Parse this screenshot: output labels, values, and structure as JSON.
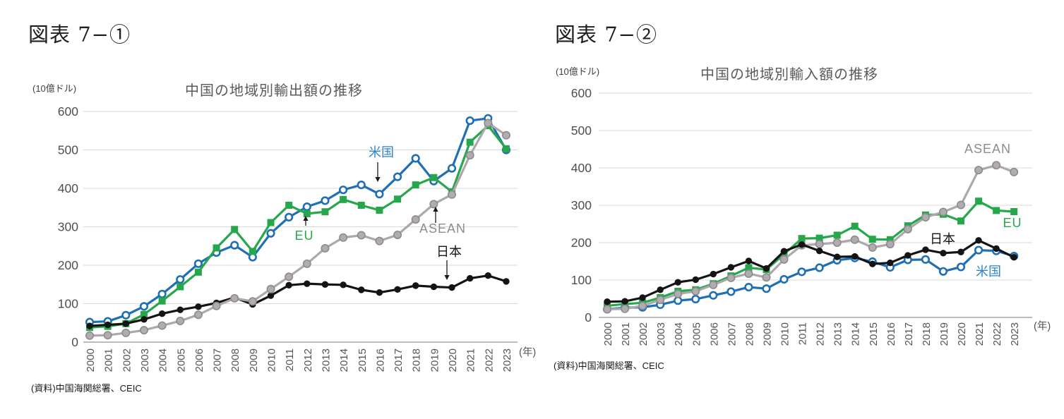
{
  "page": {
    "background": "#ffffff"
  },
  "figures": [
    {
      "heading": "図表 7−①",
      "unit": "(10億ドル)",
      "title": "中国の地域別輸出額の推移",
      "source": "(資料)中国海関総署、CEIC",
      "year_suffix": "(年)"
    },
    {
      "heading": "図表 7−②",
      "unit": "(10億ドル)",
      "title": "中国の地域別輸入額の推移",
      "source": "(資料)中国海関総署、CEIC",
      "year_suffix": "(年)"
    }
  ],
  "chart_data": [
    {
      "type": "line",
      "title": "中国の地域別輸出額の推移",
      "unit": "(10億ドル)",
      "xlabel": "(年)",
      "ylabel": "",
      "ylim": [
        0,
        600
      ],
      "y_ticks": [
        0,
        100,
        200,
        300,
        400,
        500,
        600
      ],
      "grid": true,
      "x": [
        2000,
        2001,
        2002,
        2003,
        2004,
        2005,
        2006,
        2007,
        2008,
        2009,
        2010,
        2011,
        2012,
        2013,
        2014,
        2015,
        2016,
        2017,
        2018,
        2019,
        2020,
        2021,
        2022,
        2023
      ],
      "series": [
        {
          "id": "us",
          "name": "米国",
          "color": "#1F6FB5",
          "marker": "circle-open",
          "values": [
            52,
            54,
            70,
            93,
            125,
            163,
            204,
            233,
            252,
            221,
            283,
            325,
            352,
            368,
            396,
            409,
            385,
            430,
            478,
            419,
            452,
            576,
            582,
            500
          ]
        },
        {
          "id": "eu",
          "name": "EU",
          "color": "#27A74B",
          "marker": "square",
          "values": [
            38,
            41,
            48,
            72,
            107,
            144,
            182,
            245,
            293,
            236,
            311,
            356,
            334,
            339,
            371,
            356,
            343,
            372,
            409,
            428,
            391,
            520,
            563,
            503
          ]
        },
        {
          "id": "japan",
          "name": "日本",
          "color": "#141414",
          "marker": "circle",
          "values": [
            42,
            45,
            48,
            59,
            74,
            84,
            92,
            102,
            116,
            98,
            121,
            148,
            152,
            150,
            149,
            136,
            129,
            137,
            147,
            144,
            142,
            166,
            173,
            158
          ]
        },
        {
          "id": "asean",
          "name": "ASEAN",
          "color": "#ACA8AB",
          "marker": "circle-gray",
          "marker_fill": "#B1ACB0",
          "marker_stroke": "#8E8A8D",
          "values": [
            17,
            18,
            24,
            31,
            43,
            55,
            71,
            94,
            114,
            106,
            138,
            170,
            204,
            244,
            272,
            278,
            263,
            279,
            319,
            359,
            384,
            486,
            570,
            538
          ]
        }
      ],
      "annotations": [
        {
          "series": "us",
          "text": "米国",
          "color": "#2D87C8",
          "x": 540,
          "y": 222,
          "arrow": {
            "x": 535,
            "y1": 230,
            "y2": 258
          }
        },
        {
          "series": "eu",
          "text": "EU",
          "color": "#27A74B",
          "x": 431,
          "y": 340,
          "arrow": {
            "x": 433,
            "y1": 320,
            "y2": 306
          }
        },
        {
          "series": "asean",
          "text": "ASEAN",
          "color": "#8C8C8C",
          "x": 627,
          "y": 330,
          "arrow": {
            "x": 617,
            "y1": 316,
            "y2": 293
          }
        },
        {
          "series": "japan",
          "text": "日本",
          "color": "#141414",
          "x": 636,
          "y": 363,
          "arrow": {
            "x": 633,
            "y1": 369,
            "y2": 397
          }
        }
      ]
    },
    {
      "type": "line",
      "title": "中国の地域別輸入額の推移",
      "unit": "(10億ドル)",
      "xlabel": "(年)",
      "ylabel": "",
      "ylim": [
        0,
        600
      ],
      "y_ticks": [
        0,
        100,
        200,
        300,
        400,
        500,
        600
      ],
      "grid": true,
      "x": [
        2000,
        2001,
        2002,
        2003,
        2004,
        2005,
        2006,
        2007,
        2008,
        2009,
        2010,
        2011,
        2012,
        2013,
        2014,
        2015,
        2016,
        2017,
        2018,
        2019,
        2020,
        2021,
        2022,
        2023
      ],
      "series": [
        {
          "id": "us",
          "name": "米国",
          "color": "#1F6FB5",
          "marker": "circle-open",
          "values": [
            22,
            26,
            27,
            34,
            45,
            49,
            59,
            69,
            81,
            77,
            102,
            122,
            133,
            153,
            159,
            149,
            134,
            154,
            155,
            123,
            135,
            180,
            178,
            164
          ]
        },
        {
          "id": "eu",
          "name": "EU",
          "color": "#27A74B",
          "marker": "square",
          "values": [
            31,
            36,
            39,
            53,
            70,
            74,
            90,
            111,
            133,
            128,
            169,
            211,
            212,
            220,
            244,
            209,
            208,
            245,
            274,
            276,
            258,
            311,
            286,
            283
          ]
        },
        {
          "id": "asean",
          "name": "ASEAN",
          "color": "#ACA8AB",
          "marker": "circle-gray",
          "marker_fill": "#B1ACB0",
          "marker_stroke": "#8E8A8D",
          "values": [
            22,
            23,
            31,
            47,
            63,
            70,
            87,
            106,
            117,
            107,
            155,
            193,
            196,
            200,
            208,
            187,
            196,
            236,
            268,
            282,
            301,
            394,
            407,
            389
          ]
        },
        {
          "id": "japan",
          "name": "日本",
          "color": "#141414",
          "marker": "circle",
          "values": [
            42,
            43,
            53,
            74,
            94,
            101,
            116,
            134,
            151,
            131,
            177,
            195,
            178,
            162,
            163,
            143,
            146,
            166,
            181,
            172,
            175,
            206,
            184,
            161
          ]
        }
      ],
      "annotations": [
        {
          "series": "asean",
          "text": "ASEAN",
          "color": "#8C8C8C",
          "x": 1399,
          "y": 217
        },
        {
          "series": "eu",
          "text": "EU",
          "color": "#27A74B",
          "x": 1434,
          "y": 322
        },
        {
          "series": "japan",
          "text": "日本",
          "color": "#141414",
          "x": 1335,
          "y": 345
        },
        {
          "series": "us",
          "text": "米国",
          "color": "#2D87C8",
          "x": 1400,
          "y": 391
        }
      ]
    }
  ]
}
